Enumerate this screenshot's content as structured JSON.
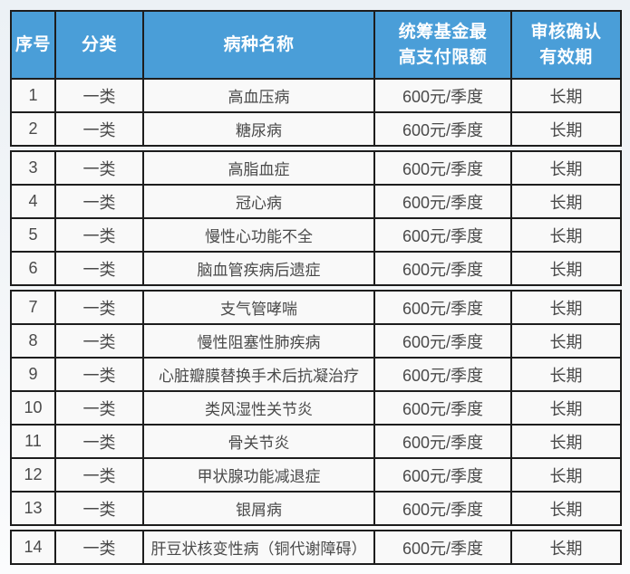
{
  "table": {
    "title_semantic": "chronic-disease-outpatient-benefit-table",
    "colors": {
      "header_bg": "#4a9ed8",
      "header_text": "#ffffff",
      "border": "#1d1d1d",
      "cell_bg": "#f9f9f9",
      "body_text": "#4a4a4a",
      "page_bg_top": "#ecf1f5",
      "page_bg_bottom": "#fbfcfd"
    },
    "headers": [
      "序号",
      "分类",
      "病种名称",
      "统筹基金最\n高支付限额",
      "审核确认\n有效期"
    ],
    "rows": [
      {
        "num": "1",
        "category": "一类",
        "disease": "高血压病",
        "limit": "600元/季度",
        "validity": "长期"
      },
      {
        "num": "2",
        "category": "一类",
        "disease": "糖尿病",
        "limit": "600元/季度",
        "validity": "长期"
      },
      {
        "num": "3",
        "category": "一类",
        "disease": "高脂血症",
        "limit": "600元/季度",
        "validity": "长期"
      },
      {
        "num": "4",
        "category": "一类",
        "disease": "冠心病",
        "limit": "600元/季度",
        "validity": "长期"
      },
      {
        "num": "5",
        "category": "一类",
        "disease": "慢性心功能不全",
        "limit": "600元/季度",
        "validity": "长期"
      },
      {
        "num": "6",
        "category": "一类",
        "disease": "脑血管疾病后遗症",
        "limit": "600元/季度",
        "validity": "长期"
      },
      {
        "num": "7",
        "category": "一类",
        "disease": "支气管哮喘",
        "limit": "600元/季度",
        "validity": "长期"
      },
      {
        "num": "8",
        "category": "一类",
        "disease": "慢性阻塞性肺疾病",
        "limit": "600元/季度",
        "validity": "长期"
      },
      {
        "num": "9",
        "category": "一类",
        "disease": "心脏瓣膜替换手术后抗凝治疗",
        "limit": "600元/季度",
        "validity": "长期"
      },
      {
        "num": "10",
        "category": "一类",
        "disease": "类风湿性关节炎",
        "limit": "600元/季度",
        "validity": "长期"
      },
      {
        "num": "11",
        "category": "一类",
        "disease": "骨关节炎",
        "limit": "600元/季度",
        "validity": "长期"
      },
      {
        "num": "12",
        "category": "一类",
        "disease": "甲状腺功能减退症",
        "limit": "600元/季度",
        "validity": "长期"
      },
      {
        "num": "13",
        "category": "一类",
        "disease": "银屑病",
        "limit": "600元/季度",
        "validity": "长期"
      },
      {
        "num": "14",
        "category": "一类",
        "disease": "肝豆状核变性病（铜代谢障碍）",
        "limit": "600元/季度",
        "validity": "长期"
      }
    ],
    "section_break_after_rows": [
      2,
      6,
      13
    ]
  }
}
